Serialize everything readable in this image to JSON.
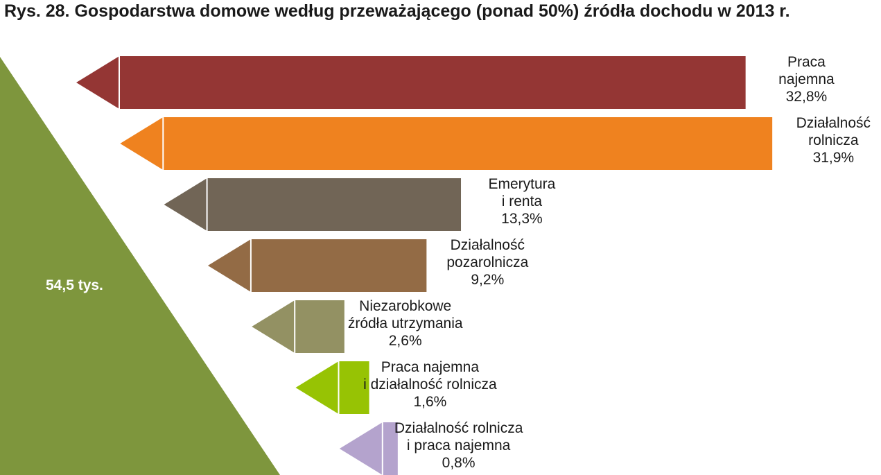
{
  "title": "Rys. 28. Gospodarstwa domowe według przeważającego (ponad 50%) źródła dochodu w 2013 r.",
  "total_label": "54,5 tys.",
  "colors": {
    "triangle": "#7e963d",
    "divider": "#ffffff"
  },
  "chart_data": {
    "type": "bar",
    "orientation": "horizontal",
    "title": "Rys. 28. Gospodarstwa domowe według przeważającego (ponad 50%) źródła dochodu w 2013 r.",
    "total": "54,5 tys.",
    "unit": "%",
    "categories": [
      "Praca najemna",
      "Działalność rolnicza",
      "Emerytura i renta",
      "Działalność pozarolnicza",
      "Niezarobkowe źródła utrzymania",
      "Praca najemna i działalność rolnicza",
      "Działalność rolnicza i praca najemna"
    ],
    "values": [
      32.8,
      31.9,
      13.3,
      9.2,
      2.6,
      1.6,
      0.8
    ],
    "labels": [
      {
        "lines": [
          "Praca",
          "najemna",
          "32,8%"
        ]
      },
      {
        "lines": [
          "Działalność",
          "rolnicza",
          "31,9%"
        ]
      },
      {
        "lines": [
          "Emerytura",
          "i renta",
          "13,3%"
        ]
      },
      {
        "lines": [
          "Działalność",
          "pozarolnicza",
          "9,2%"
        ]
      },
      {
        "lines": [
          "Niezarobkowe",
          "źródła utrzymania",
          "2,6%"
        ]
      },
      {
        "lines": [
          "Praca najemna",
          "i działalność rolnicza",
          "1,6%"
        ]
      },
      {
        "lines": [
          "Działalność rolnicza",
          "i praca najemna",
          "0,8%"
        ]
      }
    ],
    "colors": [
      "#943634",
      "#ef821f",
      "#716556",
      "#936b45",
      "#939163",
      "#97c304",
      "#b4a3cd"
    ],
    "legend": "none",
    "grid": false
  }
}
